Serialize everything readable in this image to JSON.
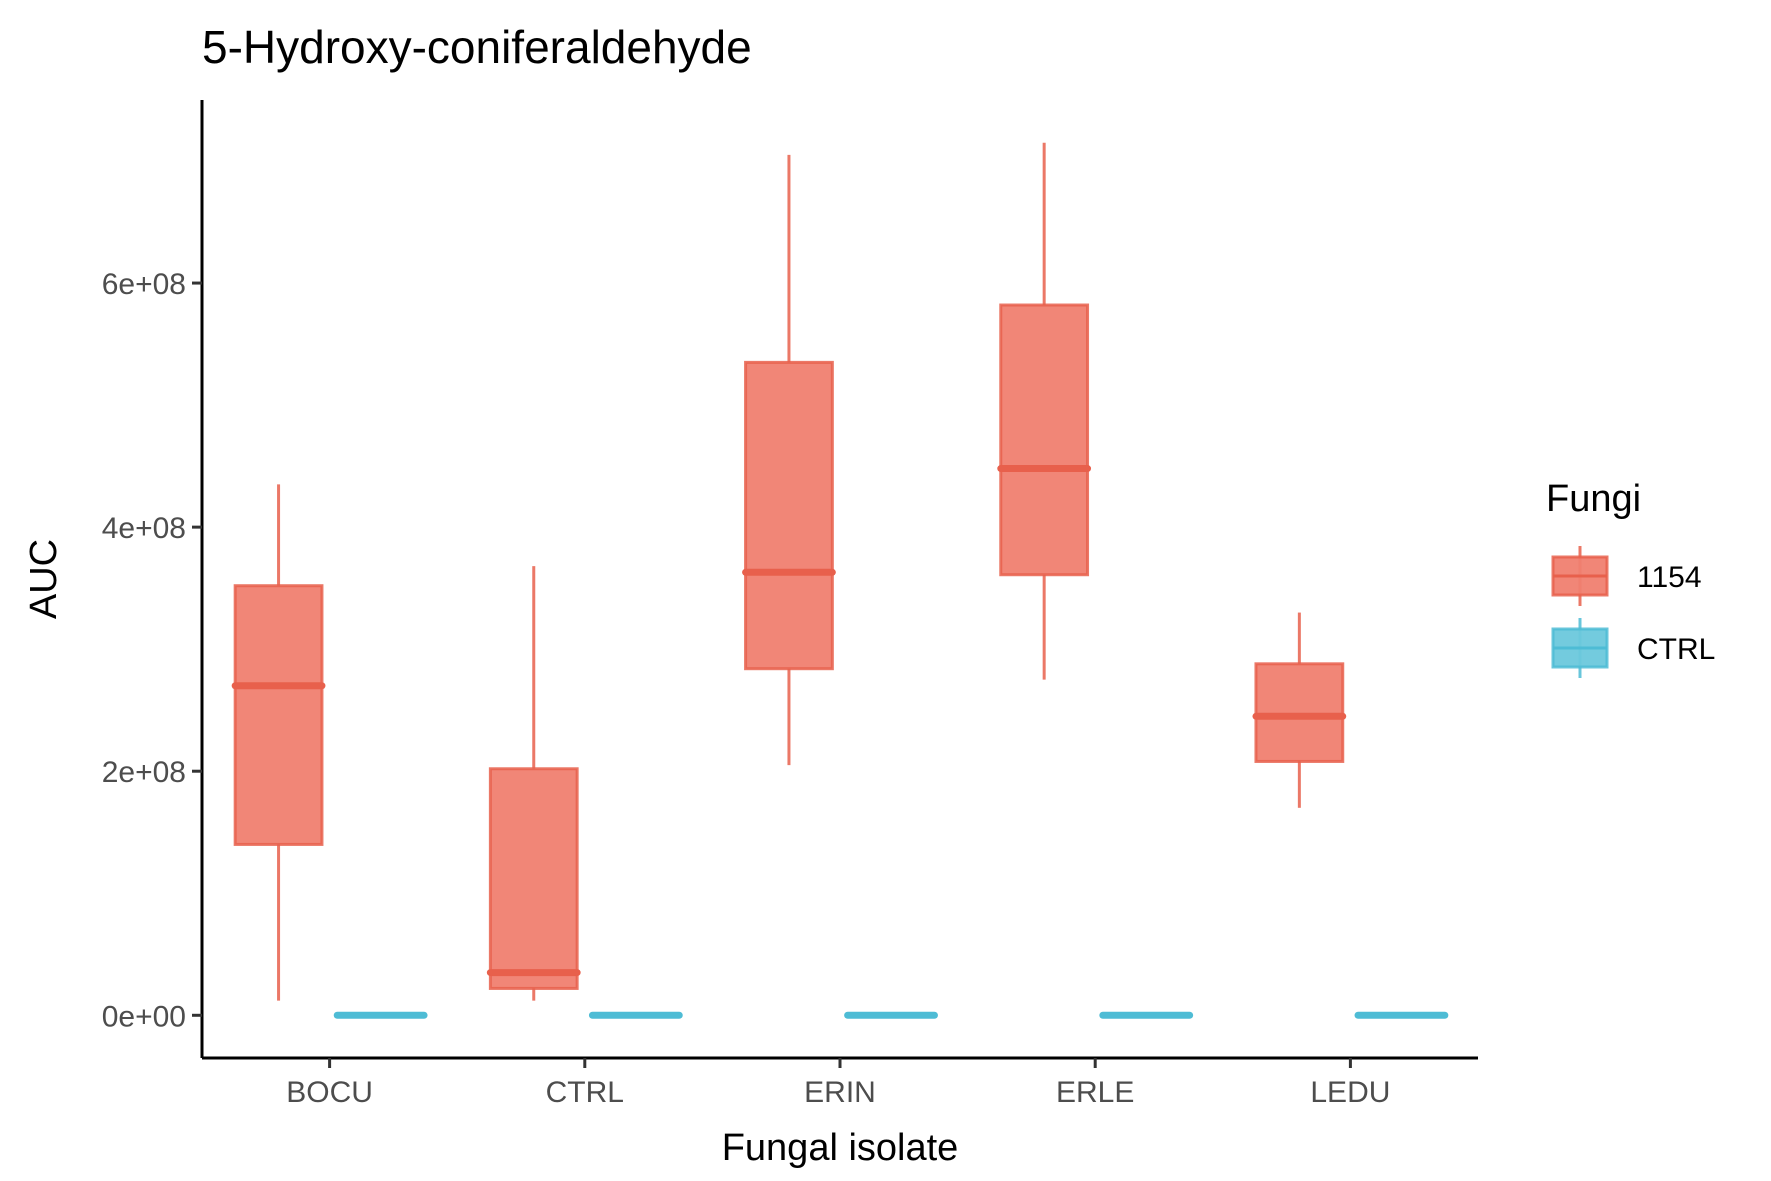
{
  "chart_data": {
    "type": "boxplot",
    "title": "5-Hydroxy-coniferaldehyde",
    "xlabel": "Fungal isolate",
    "ylabel": "AUC",
    "categories": [
      "BOCU",
      "CTRL",
      "ERIN",
      "ERLE",
      "LEDU"
    ],
    "ylim": [
      -35000000,
      750000000
    ],
    "yticks": [
      0,
      200000000,
      400000000,
      600000000
    ],
    "ytick_labels": [
      "0e+00",
      "2e+08",
      "4e+08",
      "6e+08"
    ],
    "grid": false,
    "legend": {
      "title": "Fungi",
      "placement": "right",
      "entries": [
        "1154",
        "CTRL"
      ]
    },
    "series": [
      {
        "name": "1154",
        "color": "#E8604C",
        "fill": "#F08070",
        "boxes": [
          {
            "category": "BOCU",
            "min": 12000000,
            "q1": 140000000,
            "median": 270000000,
            "q3": 352000000,
            "max": 435000000
          },
          {
            "category": "CTRL",
            "min": 12000000,
            "q1": 22000000,
            "median": 35000000,
            "q3": 202000000,
            "max": 368000000
          },
          {
            "category": "ERIN",
            "min": 205000000,
            "q1": 284000000,
            "median": 363000000,
            "q3": 535000000,
            "max": 705000000
          },
          {
            "category": "ERLE",
            "min": 275000000,
            "q1": 361000000,
            "median": 448000000,
            "q3": 582000000,
            "max": 715000000
          },
          {
            "category": "LEDU",
            "min": 170000000,
            "q1": 208000000,
            "median": 245000000,
            "q3": 288000000,
            "max": 330000000
          }
        ]
      },
      {
        "name": "CTRL",
        "color": "#4EBCD5",
        "fill": "#6CC8DC",
        "boxes": [
          {
            "category": "BOCU",
            "min": 0,
            "q1": 0,
            "median": 0,
            "q3": 0,
            "max": 0
          },
          {
            "category": "CTRL",
            "min": 0,
            "q1": 0,
            "median": 0,
            "q3": 0,
            "max": 0
          },
          {
            "category": "ERIN",
            "min": 0,
            "q1": 0,
            "median": 0,
            "q3": 0,
            "max": 0
          },
          {
            "category": "ERLE",
            "min": 0,
            "q1": 0,
            "median": 0,
            "q3": 0,
            "max": 0
          },
          {
            "category": "LEDU",
            "min": 0,
            "q1": 0,
            "median": 0,
            "q3": 0,
            "max": 0
          }
        ]
      }
    ]
  }
}
